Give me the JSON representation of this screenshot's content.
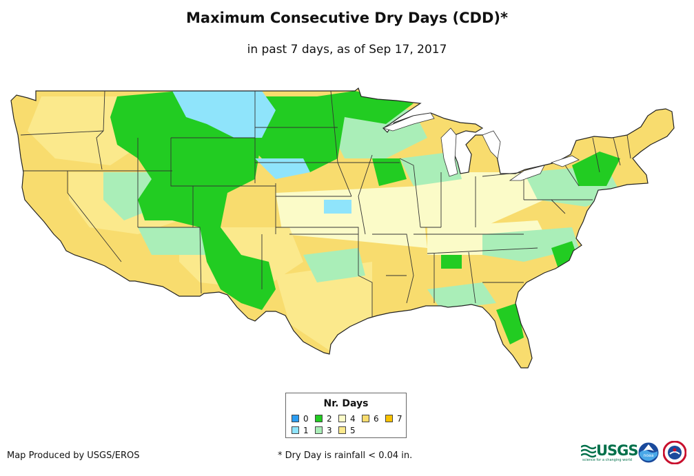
{
  "title": "Maximum Consecutive Dry Days (CDD)*",
  "subtitle": "in past 7 days, as of Sep 17, 2017",
  "legend": {
    "title": "Nr. Days",
    "items": [
      {
        "label": "0",
        "color": "#2b9df2"
      },
      {
        "label": "1",
        "color": "#8fe4fb"
      },
      {
        "label": "2",
        "color": "#22cc22"
      },
      {
        "label": "3",
        "color": "#aaeeb8"
      },
      {
        "label": "4",
        "color": "#fbfbc8"
      },
      {
        "label": "5",
        "color": "#fbe98c"
      },
      {
        "label": "6",
        "color": "#f8dc6e"
      },
      {
        "label": "7",
        "color": "#f8c200"
      }
    ]
  },
  "credit": "Map Produced by USGS/EROS",
  "footnote": "* Dry Day is rainfall < 0.04 in.",
  "logos": {
    "usgs": "USGS",
    "usgs_tagline": "science for a changing world",
    "noaa": "noaa",
    "nws": "National Weather Service"
  },
  "map_colors": {
    "outline": "#222222",
    "border": "#333333"
  }
}
